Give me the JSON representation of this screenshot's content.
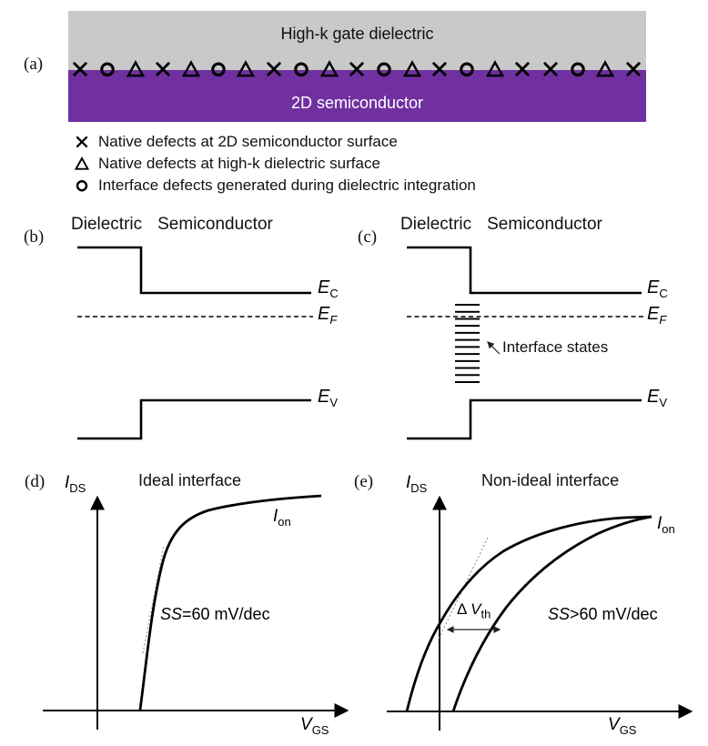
{
  "figure": {
    "panel_a": {
      "label": "(a)",
      "dielectric_text": "High-k gate dielectric",
      "semiconductor_text": "2D semiconductor",
      "dielectric_color": "#c9c9c9",
      "semiconductor_color": "#7030a0",
      "defect_sequence": [
        "x",
        "circle",
        "triangle",
        "x",
        "triangle",
        "circle",
        "triangle",
        "x",
        "circle",
        "triangle",
        "x",
        "circle",
        "triangle",
        "x",
        "circle",
        "triangle",
        "x",
        "x",
        "circle",
        "triangle",
        "x"
      ]
    },
    "legend": {
      "items": [
        {
          "symbol": "x",
          "text": "Native defects at 2D semiconductor surface"
        },
        {
          "symbol": "triangle",
          "text": "Native defects at high-k dielectric surface"
        },
        {
          "symbol": "circle",
          "text": "Interface defects generated during dielectric integration"
        }
      ]
    },
    "panel_b": {
      "label": "(b)",
      "header_left": "Dielectric",
      "header_right": "Semiconductor",
      "ec": {
        "main": "E",
        "sub": "C"
      },
      "ef": {
        "main": "E",
        "sub": "F"
      },
      "ev": {
        "main": "E",
        "sub": "V"
      }
    },
    "panel_c": {
      "label": "(c)",
      "header_left": "Dielectric",
      "header_right": "Semiconductor",
      "ec": {
        "main": "E",
        "sub": "C"
      },
      "ef": {
        "main": "E",
        "sub": "F"
      },
      "ev": {
        "main": "E",
        "sub": "V"
      },
      "interface_states_label": "Interface states",
      "interface_states_count": 12
    },
    "panel_d": {
      "label": "(d)",
      "title": "Ideal interface",
      "y_axis": {
        "main": "I",
        "sub": "DS"
      },
      "x_axis": {
        "main": "V",
        "sub": "GS"
      },
      "ion": {
        "main": "I",
        "sub": "on"
      },
      "ss": {
        "italic": "SS",
        "rest": "=60 mV/dec"
      }
    },
    "panel_e": {
      "label": "(e)",
      "title": "Non-ideal interface",
      "y_axis": {
        "main": "I",
        "sub": "DS"
      },
      "x_axis": {
        "main": "V",
        "sub": "GS"
      },
      "ion": {
        "main": "I",
        "sub": "on"
      },
      "ss": {
        "italic": "SS",
        "rest": ">60 mV/dec"
      },
      "vth": {
        "prefix": "Δ ",
        "main": "V",
        "sub": "th"
      }
    }
  }
}
